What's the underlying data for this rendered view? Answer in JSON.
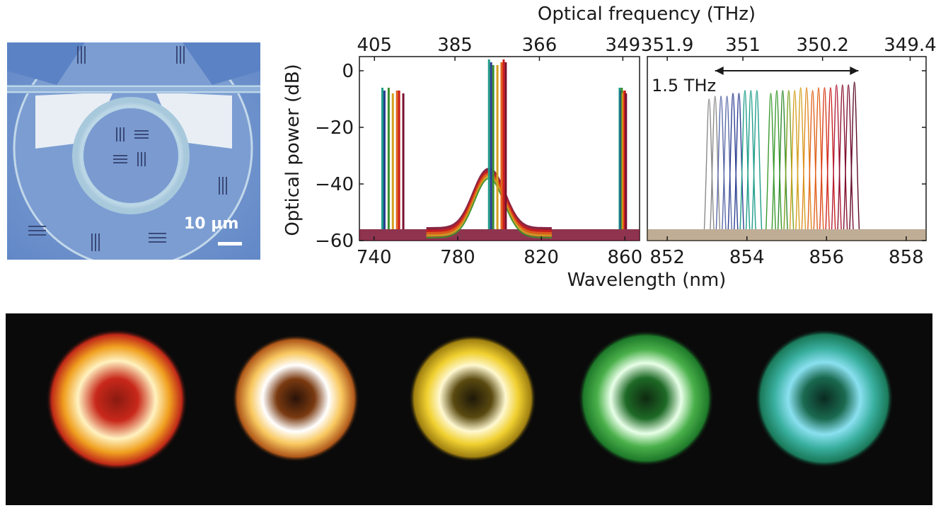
{
  "micrograph": {
    "scale_bar_label": "10 µm"
  },
  "chart_data": [
    {
      "type": "line",
      "xlabel": "Wavelength (nm)",
      "ylabel": "Optical power (dB)",
      "top_axis_label": "Optical frequency (THz)",
      "xlim": [
        733,
        867
      ],
      "ylim": [
        -60,
        5
      ],
      "x_ticks": [
        740,
        780,
        820,
        860
      ],
      "y_ticks": [
        0,
        -20,
        -40,
        -60
      ],
      "top_ticks": [
        {
          "label": "405",
          "wavelength": 740.2
        },
        {
          "label": "385",
          "wavelength": 778.7
        },
        {
          "label": "366",
          "wavelength": 819.1
        },
        {
          "label": "349",
          "wavelength": 859.0
        }
      ],
      "noise_floor_db": -56,
      "series": [
        {
          "color": "#1f9e8a",
          "pump": 795,
          "idler": 744,
          "signal": 857.5,
          "pump_db": 4,
          "side_db": -6
        },
        {
          "color": "#2c3e91",
          "pump": 796,
          "idler": 745,
          "signal": 858.0,
          "pump_db": 3,
          "side_db": -7
        },
        {
          "color": "#3a8f2e",
          "pump": 797,
          "idler": 747,
          "signal": 858.5,
          "pump_db": 2,
          "side_db": -6
        },
        {
          "color": "#d4a020",
          "pump": 799,
          "idler": 749,
          "signal": 859.0,
          "pump_db": 2,
          "side_db": -8
        },
        {
          "color": "#e0621a",
          "pump": 801,
          "idler": 751,
          "signal": 859.5,
          "pump_db": 3,
          "side_db": -7
        },
        {
          "color": "#cc1f1f",
          "pump": 802,
          "idler": 752,
          "signal": 860.0,
          "pump_db": 4,
          "side_db": -7
        },
        {
          "color": "#7a1030",
          "pump": 803,
          "idler": 754,
          "signal": 860.5,
          "pump_db": 3,
          "side_db": -8
        }
      ],
      "fluorescence_band": {
        "center": 795,
        "peak_db": -35
      }
    },
    {
      "type": "line",
      "xlabel": "Wavelength (nm)",
      "xlim": [
        851.5,
        858.5
      ],
      "ylim": [
        -60,
        5
      ],
      "x_ticks": [
        852,
        854,
        856,
        858
      ],
      "top_ticks": [
        {
          "label": "351.9",
          "wavelength": 852.0
        },
        {
          "label": "351",
          "wavelength": 853.9
        },
        {
          "label": "350.2",
          "wavelength": 855.9
        },
        {
          "label": "349.4",
          "wavelength": 858.1
        }
      ],
      "annotation": {
        "text": "1.5 THz",
        "from": 853.2,
        "to": 856.8,
        "y": 0
      },
      "peak_wavelengths": [
        853.05,
        853.2,
        853.35,
        853.5,
        853.65,
        853.8,
        853.95,
        854.1,
        854.25,
        854.6,
        854.75,
        854.9,
        855.05,
        855.2,
        855.35,
        855.5,
        855.65,
        855.8,
        855.95,
        856.1,
        856.25,
        856.4,
        856.55,
        856.7
      ],
      "peak_colors": [
        "#8a8a8a",
        "#8a8a8a",
        "#5a6aa8",
        "#5a6aa8",
        "#2c3e91",
        "#2c3e91",
        "#1f9e8a",
        "#1f9e8a",
        "#1f9e8a",
        "#3a9a2e",
        "#3a9a2e",
        "#2f8a2a",
        "#7aa020",
        "#d4a020",
        "#d4a020",
        "#e08a20",
        "#e0621a",
        "#e0621a",
        "#d83a1a",
        "#cc1f1f",
        "#b01c3a",
        "#8c1230",
        "#7a1030",
        "#5c0c28"
      ],
      "peak_db": [
        -10,
        -9,
        -9,
        -9,
        -8,
        -8,
        -7,
        -7,
        -7,
        -8,
        -7,
        -7,
        -7,
        -7,
        -6,
        -6,
        -7,
        -6,
        -6,
        -6,
        -5,
        -5,
        -5,
        -4
      ],
      "noise_floor_db": -56
    }
  ],
  "mode_images": [
    {
      "color": "red-orange"
    },
    {
      "color": "orange"
    },
    {
      "color": "yellow"
    },
    {
      "color": "green"
    },
    {
      "color": "cyan-green"
    }
  ]
}
